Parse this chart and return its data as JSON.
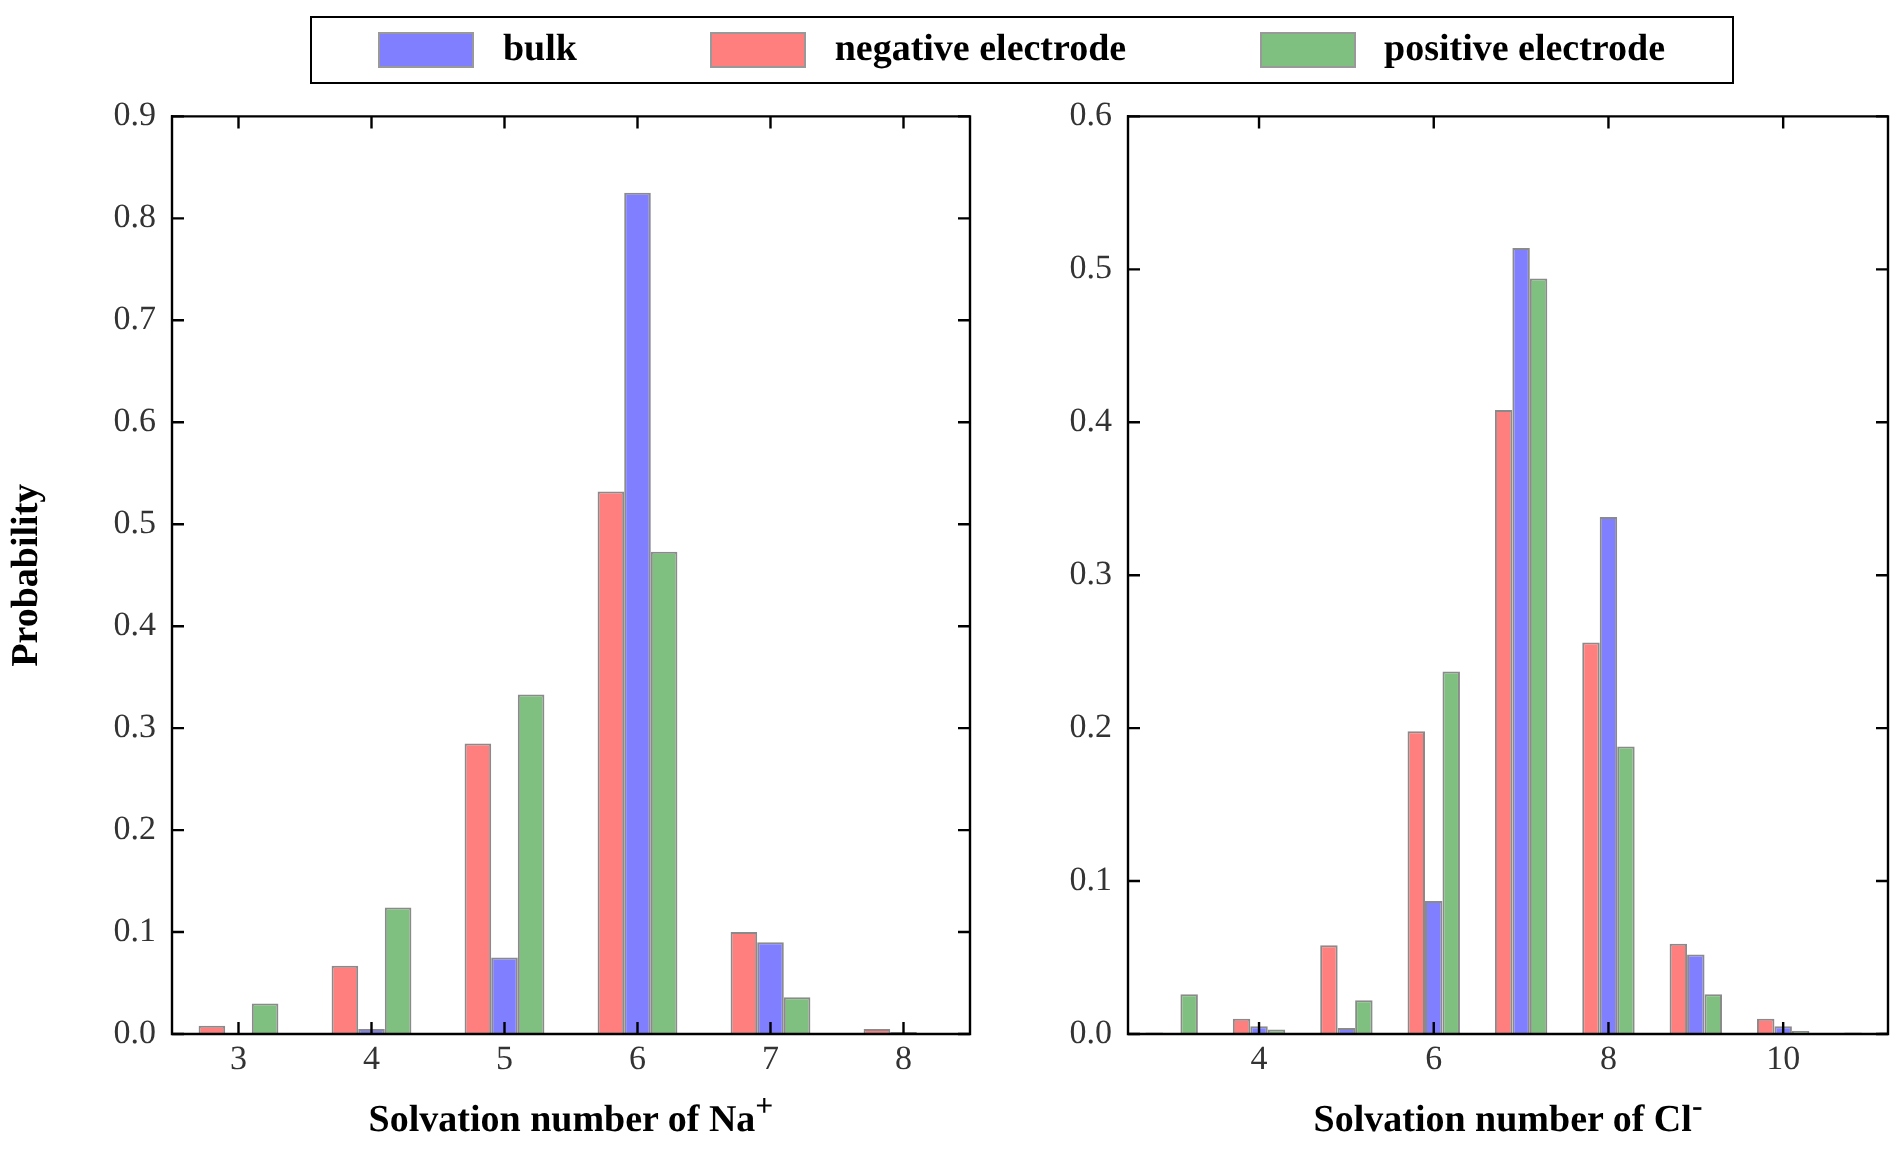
{
  "chart_data": [
    {
      "type": "bar",
      "xlabel": "Solvation number of Na$^{+}$",
      "ylabel": "Probability",
      "x": [
        3,
        4,
        5,
        6,
        7,
        8
      ],
      "legend": "top",
      "grid": false,
      "xlim": [
        2.5,
        8.5
      ],
      "xticks": [
        3,
        4,
        5,
        6,
        7,
        8
      ],
      "ylim": [
        0,
        0.9
      ],
      "yticks": [
        {
          "value": 0,
          "label": "0.0"
        },
        0.1,
        0.2,
        0.3,
        0.4,
        0.5,
        0.6,
        0.7,
        0.8,
        0.9
      ],
      "series": [
        {
          "name": "bulk",
          "color": "#7f7fff",
          "values": [
            0.001,
            0.005,
            0.075,
            0.825,
            0.09,
            0.002
          ]
        },
        {
          "name": "negative electrode",
          "color": "#ff7f7f",
          "values": [
            0.008,
            0.067,
            0.285,
            0.532,
            0.1,
            0.005
          ]
        },
        {
          "name": "positive electrode",
          "color": "#7fbf7f",
          "values": [
            0.03,
            0.124,
            0.333,
            0.473,
            0.036,
            0.001
          ]
        }
      ]
    },
    {
      "type": "bar",
      "xlabel": "Solvation number of Cl$^{-}$",
      "x": [
        3,
        4,
        5,
        6,
        7,
        8,
        9,
        10,
        11
      ],
      "grid": false,
      "xlim": [
        2.5,
        11.2
      ],
      "xticks": [
        4,
        6,
        8,
        10
      ],
      "ylim": [
        0,
        0.6
      ],
      "yticks": [
        {
          "value": 0,
          "label": "0.0"
        },
        0.1,
        0.2,
        0.3,
        0.4,
        0.5,
        0.6
      ],
      "series": [
        {
          "color": "#7f7fff",
          "values": [
            0.0,
            0.005,
            0.004,
            0.087,
            0.514,
            0.338,
            0.052,
            0.005,
            0.0
          ]
        },
        {
          "color": "#ff7f7f",
          "values": [
            0.001,
            0.01,
            0.058,
            0.198,
            0.408,
            0.256,
            0.059,
            0.01,
            0.001
          ]
        },
        {
          "color": "#7fbf7f",
          "values": [
            0.026,
            0.003,
            0.022,
            0.237,
            0.494,
            0.188,
            0.026,
            0.002,
            0.001
          ]
        }
      ]
    }
  ]
}
